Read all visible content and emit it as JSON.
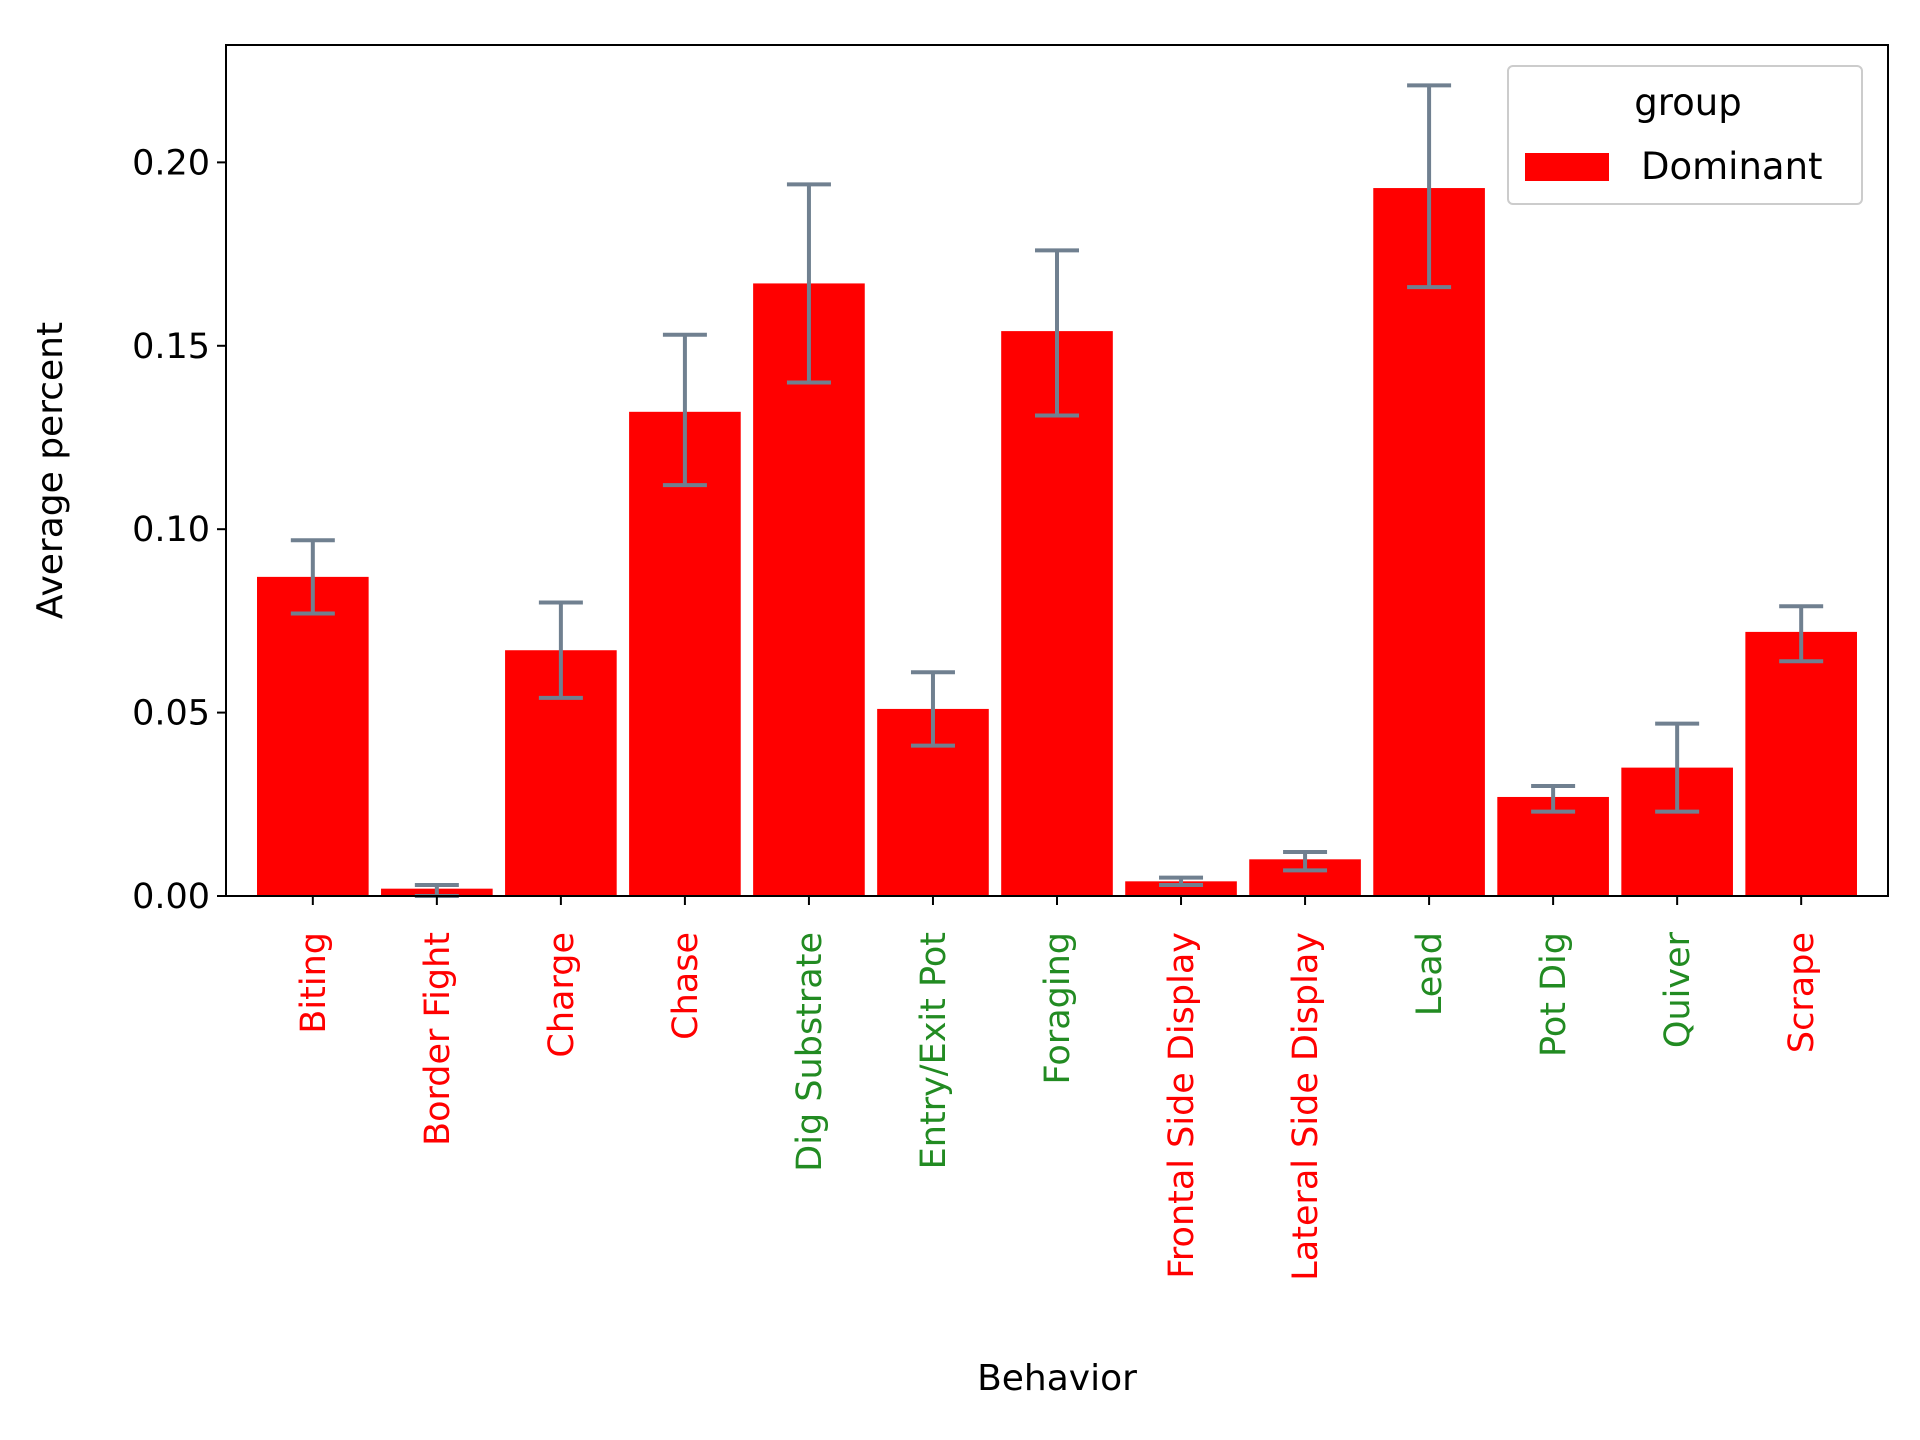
{
  "chart_data": {
    "type": "bar",
    "categories": [
      "Biting",
      "Border Fight",
      "Charge",
      "Chase",
      "Dig Substrate",
      "Entry/Exit Pot",
      "Foraging",
      "Frontal Side Display",
      "Lateral Side Display",
      "Lead",
      "Pot Dig",
      "Quiver",
      "Scrape"
    ],
    "category_label_colors": [
      "#ff0000",
      "#ff0000",
      "#ff0000",
      "#ff0000",
      "#228b22",
      "#228b22",
      "#228b22",
      "#ff0000",
      "#ff0000",
      "#228b22",
      "#228b22",
      "#228b22",
      "#ff0000"
    ],
    "series": [
      {
        "name": "Dominant",
        "color": "#ff0000",
        "values": [
          0.087,
          0.002,
          0.067,
          0.132,
          0.167,
          0.051,
          0.154,
          0.004,
          0.01,
          0.193,
          0.027,
          0.035,
          0.072
        ],
        "error_low": [
          0.077,
          0.0,
          0.054,
          0.112,
          0.14,
          0.041,
          0.131,
          0.003,
          0.007,
          0.166,
          0.023,
          0.023,
          0.064
        ],
        "error_high": [
          0.097,
          0.003,
          0.08,
          0.153,
          0.194,
          0.061,
          0.176,
          0.005,
          0.012,
          0.221,
          0.03,
          0.047,
          0.079
        ]
      }
    ],
    "error_bar_color": "#708090",
    "title": "",
    "xlabel": "Behavior",
    "ylabel": "Average percent",
    "ylim": [
      0,
      0.232
    ],
    "yticks": [
      "0.00",
      "0.05",
      "0.10",
      "0.15",
      "0.20"
    ],
    "ytick_values": [
      0,
      0.05,
      0.1,
      0.15,
      0.2
    ],
    "legend": {
      "title": "group",
      "placement": "top-right"
    },
    "grid": false
  }
}
